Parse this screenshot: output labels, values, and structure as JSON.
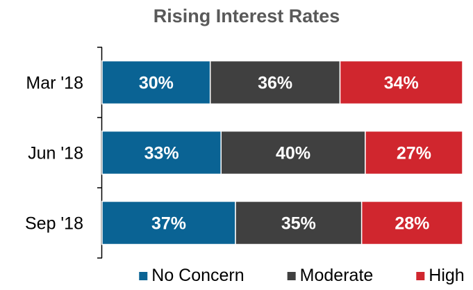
{
  "chart_data": {
    "type": "bar",
    "orientation": "horizontal",
    "stacked": true,
    "percent_stacked": true,
    "title": "Rising Interest Rates",
    "xlabel": "",
    "ylabel": "",
    "categories": [
      "Mar '18",
      "Jun '18",
      "Sep '18"
    ],
    "series": [
      {
        "name": "No Concern",
        "values": [
          30,
          33,
          37
        ],
        "labels": [
          "30%",
          "33%",
          "37%"
        ],
        "color": "#0a6394"
      },
      {
        "name": "Moderate",
        "values": [
          36,
          40,
          35
        ],
        "labels": [
          "36%",
          "40%",
          "35%"
        ],
        "color": "#404040"
      },
      {
        "name": "High",
        "values": [
          34,
          27,
          28
        ],
        "labels": [
          "34%",
          "27%",
          "28%"
        ],
        "color": "#d0262e"
      }
    ],
    "xlim": [
      0,
      100
    ],
    "grid": false,
    "legend_position": "bottom",
    "axis_color": "#000000"
  }
}
